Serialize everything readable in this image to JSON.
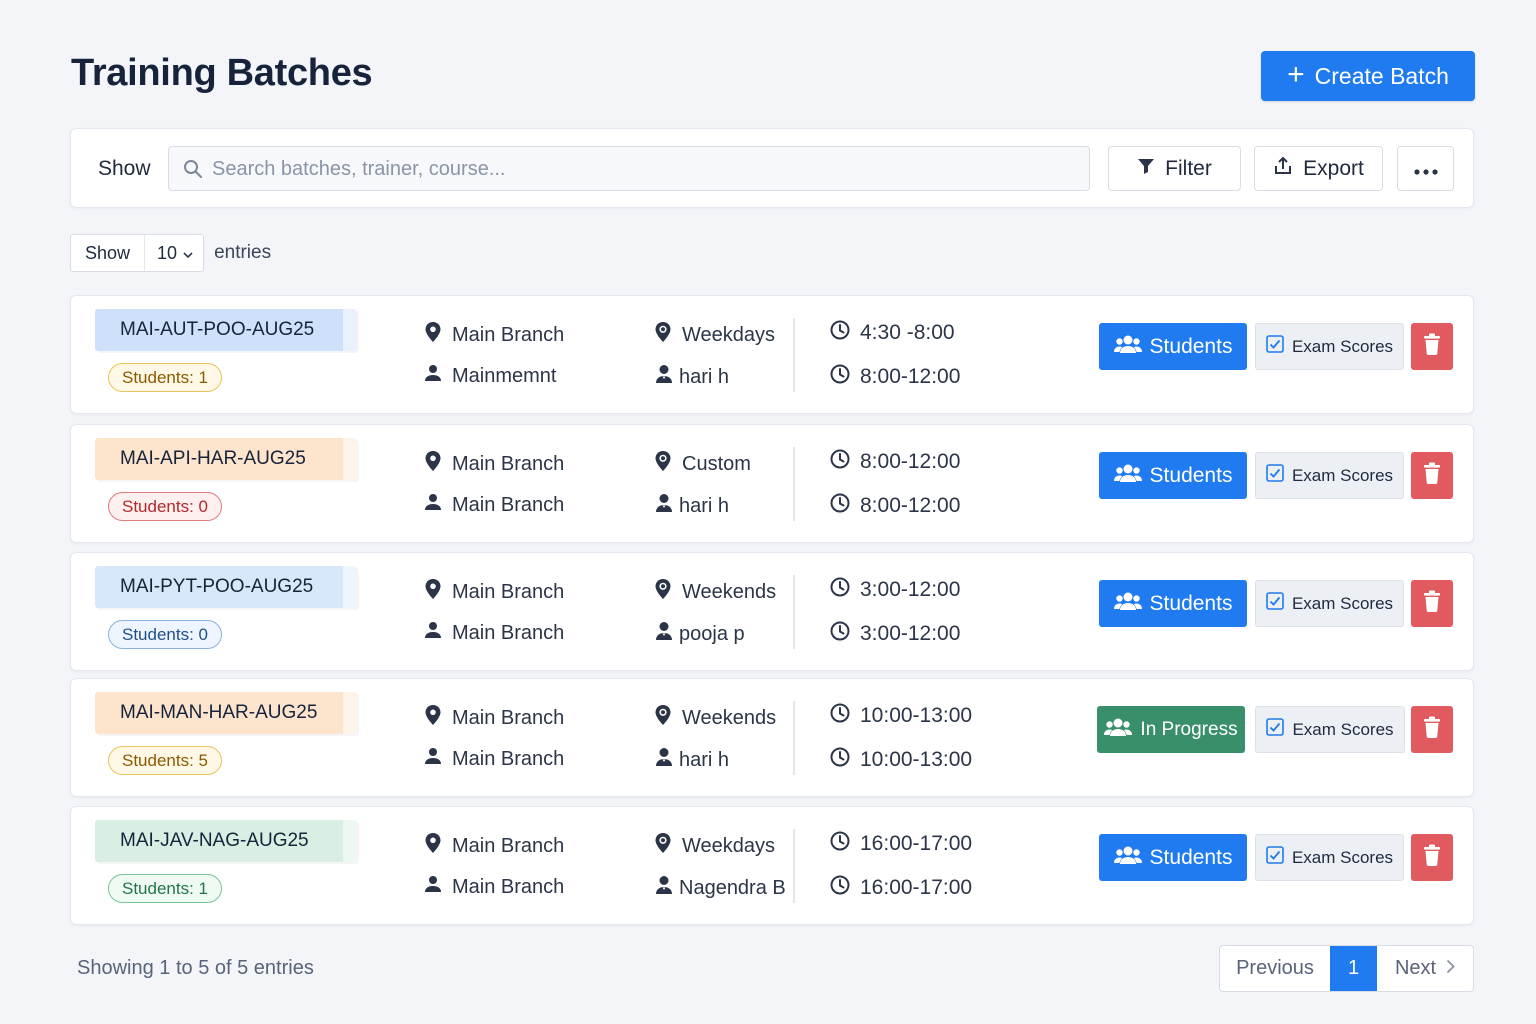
{
  "header": {
    "title": "Training Batches",
    "create_label": "Create Batch"
  },
  "toolbar": {
    "show_label": "Show",
    "search_placeholder": "Search batches, trainer, course...",
    "filter_label": "Filter",
    "export_label": "Export"
  },
  "entries": {
    "show_label": "Show",
    "value": "10",
    "suffix": "entries"
  },
  "colors": {
    "primary": "#1f7bef",
    "success": "#3a8f6b",
    "danger": "#e05a5f"
  },
  "batches": [
    {
      "code": "MAI-AUT-POO-AUG25",
      "tag_color": "#cfe0fb",
      "count": "Students: 1",
      "pill_bg": "#fff8e6",
      "pill_border": "#e8c45a",
      "pill_text": "#8a5a00",
      "branch": "Main Branch",
      "location": "Mainmemnt",
      "schedule": "Weekdays",
      "trainer": "hari h",
      "time1": "4:30 -8:00",
      "time2": "8:00-12:00",
      "action": "Students",
      "exam": "Exam Scores"
    },
    {
      "code": "MAI-API-HAR-AUG25",
      "tag_color": "#fde4cc",
      "count": "Students: 0",
      "pill_bg": "#fff0f0",
      "pill_border": "#e07c7c",
      "pill_text": "#b3282d",
      "branch": "Main Branch",
      "location": "Main Branch",
      "schedule": "Custom",
      "trainer": "hari h",
      "time1": "8:00-12:00",
      "time2": "8:00-12:00",
      "action": "Students",
      "exam": "Exam Scores"
    },
    {
      "code": "MAI-PYT-POO-AUG25",
      "tag_color": "#d8e8fb",
      "count": "Students: 0",
      "pill_bg": "#eef5fe",
      "pill_border": "#8ab2e0",
      "pill_text": "#1e4f8a",
      "branch": "Main Branch",
      "location": "Main Branch",
      "schedule": "Weekends",
      "trainer": "pooja p",
      "time1": "3:00-12:00",
      "time2": "3:00-12:00",
      "action": "Students",
      "exam": "Exam Scores"
    },
    {
      "code": "MAI-MAN-HAR-AUG25",
      "tag_color": "#fde4cc",
      "count": "Students: 5",
      "pill_bg": "#fff8e6",
      "pill_border": "#e8c45a",
      "pill_text": "#8a5a00",
      "branch": "Main Branch",
      "location": "Main Branch",
      "schedule": "Weekends",
      "trainer": "hari h",
      "time1": "10:00-13:00",
      "time2": "10:00-13:00",
      "action": "In Progress",
      "exam": "Exam Scores"
    },
    {
      "code": "MAI-JAV-NAG-AUG25",
      "tag_color": "#d9efe4",
      "count": "Students: 1",
      "pill_bg": "#effaf3",
      "pill_border": "#7cc39a",
      "pill_text": "#24744a",
      "branch": "Main Branch",
      "location": "Main Branch",
      "schedule": "Weekdays",
      "trainer": "Nagendra B",
      "time1": "16:00-17:00",
      "time2": "16:00-17:00",
      "action": "Students",
      "exam": "Exam Scores"
    }
  ],
  "footer": {
    "summary": "Showing 1 to 5 of 5 entries",
    "prev_label": "Previous",
    "current_page": "1",
    "next_label": "Next"
  }
}
